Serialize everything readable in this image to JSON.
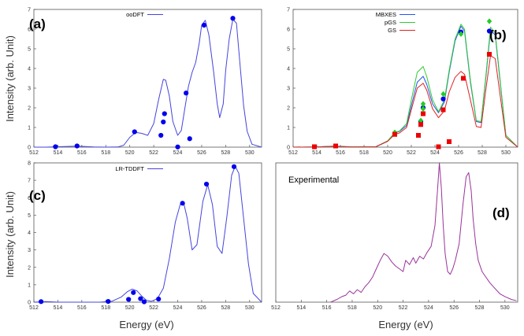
{
  "figure": {
    "ylabel": "Intensity (arb. Unit)",
    "xlabel": "Energy (eV)"
  },
  "chart_data": [
    {
      "type": "line",
      "panel": "(a)",
      "title": "",
      "xlim": [
        512,
        531
      ],
      "ylim": [
        0,
        7
      ],
      "xticks": [
        512,
        514,
        516,
        518,
        520,
        522,
        524,
        526,
        528,
        530
      ],
      "yticks": [
        0,
        1,
        2,
        3,
        4,
        5,
        6,
        7
      ],
      "series": [
        {
          "name": "ooDFT",
          "color": "#4444dd",
          "x": [
            512,
            513,
            514,
            515,
            515.5,
            516,
            517,
            518,
            519,
            519.5,
            520,
            520.5,
            521,
            521.5,
            522,
            522.4,
            522.8,
            523,
            523.3,
            523.6,
            524,
            524.3,
            524.6,
            524.9,
            525.2,
            525.5,
            525.8,
            526,
            526.3,
            526.6,
            527,
            527.3,
            527.5,
            527.8,
            528,
            528.3,
            528.6,
            528.9,
            529.2,
            529.5,
            529.8,
            530.2,
            531
          ],
          "y": [
            0,
            0,
            0.02,
            0.04,
            0.05,
            0.04,
            0.01,
            0,
            0.01,
            0.1,
            0.5,
            0.75,
            0.7,
            0.6,
            1.2,
            2.4,
            3.45,
            3.4,
            2.6,
            1.3,
            0.6,
            0.85,
            2.0,
            3.1,
            3.8,
            4.3,
            5.3,
            6.2,
            6.45,
            5.7,
            3.8,
            2.2,
            1.5,
            2.2,
            3.9,
            5.5,
            6.5,
            6.3,
            4.2,
            2.1,
            0.8,
            0.15,
            0
          ]
        }
      ],
      "points": {
        "name": "ooDFT sticks",
        "color": "#0000ee",
        "x": [
          513.8,
          515.6,
          520.4,
          522.6,
          522.8,
          522.9,
          524.0,
          524.7,
          525.0,
          526.2,
          528.6
        ],
        "y": [
          0.02,
          0.06,
          0.78,
          0.6,
          1.28,
          1.7,
          0.01,
          2.75,
          0.43,
          6.2,
          6.55
        ]
      }
    },
    {
      "type": "line",
      "panel": "(b)",
      "title": "",
      "xlim": [
        512,
        531
      ],
      "ylim": [
        0,
        7
      ],
      "xticks": [
        512,
        514,
        516,
        518,
        520,
        522,
        524,
        526,
        528,
        530
      ],
      "yticks": [
        0,
        1,
        2,
        3,
        4,
        5,
        6,
        7
      ],
      "series": [
        {
          "name": "MBXES",
          "color": "#2255ee",
          "x": [
            512,
            514,
            515.5,
            517,
            519,
            520,
            520.6,
            521,
            521.6,
            522,
            522.5,
            523,
            523.3,
            523.8,
            524.3,
            524.8,
            525.2,
            525.7,
            526.2,
            526.5,
            527,
            527.5,
            527.9,
            528.3,
            528.7,
            529.1,
            529.5,
            530,
            531
          ],
          "y": [
            0,
            0.01,
            0.05,
            0.01,
            0.02,
            0.3,
            0.72,
            0.8,
            1.1,
            2.1,
            3.3,
            3.6,
            3.2,
            2.2,
            1.75,
            2.3,
            3.8,
            5.4,
            6.15,
            5.9,
            3.3,
            1.3,
            1.25,
            3.5,
            5.95,
            5.7,
            3.4,
            0.6,
            0
          ]
        },
        {
          "name": "pGS",
          "color": "#33cc33",
          "x": [
            512,
            514,
            515.5,
            517,
            519,
            520,
            520.6,
            521,
            521.6,
            522,
            522.5,
            523,
            523.3,
            523.8,
            524.3,
            524.8,
            525.2,
            525.7,
            526.2,
            526.5,
            527,
            527.5,
            527.9,
            528.3,
            528.7,
            529.1,
            529.5,
            530,
            531
          ],
          "y": [
            0,
            0.01,
            0.05,
            0.01,
            0.02,
            0.32,
            0.75,
            0.82,
            1.2,
            2.4,
            3.8,
            4.1,
            3.6,
            2.4,
            1.8,
            2.4,
            3.9,
            5.5,
            6.25,
            6.0,
            3.4,
            1.35,
            1.3,
            3.6,
            6.1,
            5.8,
            3.5,
            0.6,
            0
          ]
        },
        {
          "name": "GS",
          "color": "#dd2222",
          "x": [
            512,
            514,
            515.5,
            517,
            519,
            520,
            520.6,
            521,
            521.6,
            522,
            522.5,
            523,
            523.3,
            523.8,
            524.3,
            524.8,
            525.2,
            525.7,
            526.2,
            526.5,
            527,
            527.5,
            527.9,
            528.3,
            528.7,
            529.1,
            529.5,
            530,
            531
          ],
          "y": [
            0,
            0.01,
            0.05,
            0.01,
            0.02,
            0.3,
            0.65,
            0.72,
            1.0,
            1.9,
            3.0,
            3.25,
            2.9,
            1.95,
            1.5,
            1.85,
            2.8,
            3.55,
            3.85,
            3.7,
            2.4,
            1.05,
            1.0,
            2.9,
            4.65,
            4.5,
            2.7,
            0.5,
            0
          ]
        }
      ],
      "points_groups": [
        {
          "name": "MBXES sticks",
          "shape": "circle",
          "color": "#0000ee",
          "x": [
            520.6,
            522.8,
            523.0,
            523.0,
            524.7,
            526.2,
            528.6
          ],
          "y": [
            0.7,
            1.3,
            1.7,
            2.0,
            2.45,
            5.85,
            5.9
          ]
        },
        {
          "name": "pGS sticks",
          "shape": "diamond",
          "color": "#22cc22",
          "x": [
            520.6,
            522.8,
            523.0,
            523.0,
            524.7,
            526.2,
            528.6
          ],
          "y": [
            0.75,
            1.35,
            1.95,
            2.2,
            2.7,
            5.75,
            6.4
          ]
        },
        {
          "name": "GS sticks",
          "shape": "square",
          "color": "#ee0000",
          "x": [
            513.8,
            515.6,
            520.6,
            522.6,
            522.8,
            523.0,
            524.3,
            524.7,
            525.2,
            526.4,
            528.6
          ],
          "y": [
            0.02,
            0.06,
            0.65,
            0.6,
            1.15,
            1.7,
            0.02,
            1.9,
            0.28,
            3.5,
            4.72
          ]
        }
      ]
    },
    {
      "type": "line",
      "panel": "(c)",
      "title": "",
      "xlim": [
        512,
        531
      ],
      "ylim": [
        0,
        8
      ],
      "xticks": [
        512,
        514,
        516,
        518,
        520,
        522,
        524,
        526,
        528,
        530
      ],
      "yticks": [
        0,
        1,
        2,
        3,
        4,
        5,
        6,
        7,
        8
      ],
      "series": [
        {
          "name": "LR-TDDFT",
          "color": "#4444dd",
          "x": [
            512,
            513,
            514,
            516,
            517.5,
            518.5,
            519.3,
            519.8,
            520.2,
            520.6,
            521,
            521.4,
            521.8,
            522.3,
            522.8,
            523.3,
            523.8,
            524.2,
            524.5,
            524.8,
            525.2,
            525.6,
            526.1,
            526.5,
            526.9,
            527.3,
            527.7,
            528.1,
            528.5,
            528.8,
            529.1,
            529.5,
            529.9,
            530.3,
            531
          ],
          "y": [
            0,
            0.03,
            0,
            0,
            0,
            0.05,
            0.3,
            0.6,
            0.75,
            0.65,
            0.35,
            0.1,
            0.05,
            0.2,
            0.8,
            2.5,
            4.6,
            5.6,
            5.7,
            4.8,
            3.0,
            3.3,
            5.8,
            6.75,
            5.6,
            3.2,
            2.8,
            4.9,
            7.3,
            7.8,
            7.4,
            4.8,
            2.2,
            0.5,
            0
          ]
        }
      ],
      "points": {
        "name": "LR-TDDFT sticks",
        "color": "#0000ee",
        "x": [
          512.6,
          518.2,
          519.9,
          520.3,
          520.9,
          521.2,
          522.4,
          524.4,
          526.4,
          528.7
        ],
        "y": [
          0.03,
          0.04,
          0.16,
          0.55,
          0.2,
          0.02,
          0.18,
          5.68,
          6.78,
          7.78
        ]
      }
    },
    {
      "type": "line",
      "panel": "(d)",
      "title": "",
      "annotation": "Experimental",
      "xlim": [
        512,
        531
      ],
      "ylim": [
        0,
        1
      ],
      "xticks": [
        512,
        514,
        516,
        518,
        520,
        522,
        524,
        526,
        528,
        530
      ],
      "yticks": [],
      "series": [
        {
          "name": "Experimental",
          "color": "#993399",
          "x": [
            516.3,
            516.8,
            517.2,
            517.5,
            517.8,
            518.1,
            518.4,
            518.7,
            519.0,
            519.3,
            519.6,
            519.9,
            520.2,
            520.5,
            520.8,
            521.1,
            521.4,
            521.7,
            522.0,
            522.2,
            522.5,
            522.8,
            523.0,
            523.3,
            523.6,
            523.9,
            524.2,
            524.5,
            524.7,
            524.85,
            525.0,
            525.15,
            525.3,
            525.5,
            525.7,
            525.9,
            526.1,
            526.4,
            526.7,
            526.95,
            527.15,
            527.35,
            527.5,
            527.7,
            527.9,
            528.2,
            528.5,
            528.8,
            529.2,
            529.6,
            530.0,
            530.5,
            530.9
          ],
          "y": [
            0,
            0.02,
            0.04,
            0.05,
            0.08,
            0.06,
            0.09,
            0.07,
            0.11,
            0.14,
            0.18,
            0.24,
            0.3,
            0.35,
            0.33,
            0.29,
            0.26,
            0.24,
            0.22,
            0.3,
            0.27,
            0.32,
            0.28,
            0.33,
            0.31,
            0.36,
            0.4,
            0.55,
            0.8,
            1.0,
            0.82,
            0.55,
            0.35,
            0.22,
            0.2,
            0.24,
            0.3,
            0.42,
            0.7,
            0.9,
            0.93,
            0.8,
            0.6,
            0.42,
            0.3,
            0.22,
            0.18,
            0.14,
            0.1,
            0.06,
            0.04,
            0.02,
            0.01
          ]
        }
      ]
    }
  ]
}
